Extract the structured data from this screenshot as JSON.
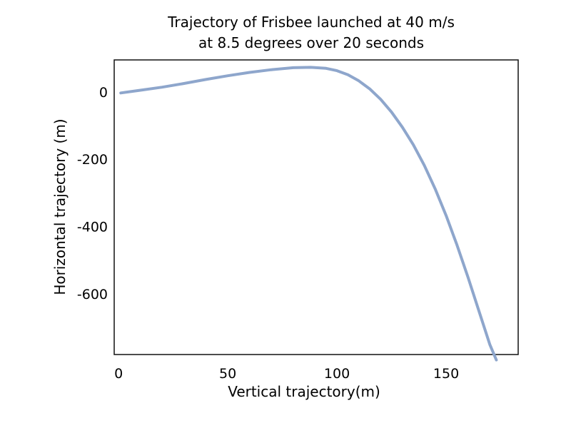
{
  "chart_data": {
    "type": "line",
    "title": [
      "Trajectory of Frisbee launched at 40 m/s",
      "at 8.5 degrees over 20 seconds"
    ],
    "xlabel": "Vertical trajectory(m)",
    "ylabel": "Horizontal trajectory (m)",
    "xlim": [
      -2,
      183
    ],
    "ylim": [
      -780,
      95
    ],
    "x_ticks": [
      0,
      50,
      100,
      150
    ],
    "y_ticks": [
      0,
      -200,
      -400,
      -600
    ],
    "x_tick_labels": [
      "0",
      "50",
      "100",
      "150"
    ],
    "y_tick_labels": [
      "0",
      "-200",
      "-400",
      "-600"
    ],
    "grid": false,
    "line_color": "#8ea6cc",
    "series": [
      {
        "x": [
          1,
          10,
          20,
          30,
          40,
          50,
          60,
          70,
          80,
          88,
          95,
          100,
          105,
          110,
          115,
          120,
          125,
          130,
          135,
          140,
          145,
          150,
          155,
          160,
          165,
          170,
          173
        ],
        "y": [
          -3,
          5,
          14,
          25,
          37,
          48,
          58,
          66,
          72,
          73,
          70,
          63,
          51,
          33,
          9,
          -22,
          -60,
          -105,
          -157,
          -218,
          -288,
          -367,
          -455,
          -550,
          -650,
          -750,
          -796
        ]
      }
    ]
  }
}
